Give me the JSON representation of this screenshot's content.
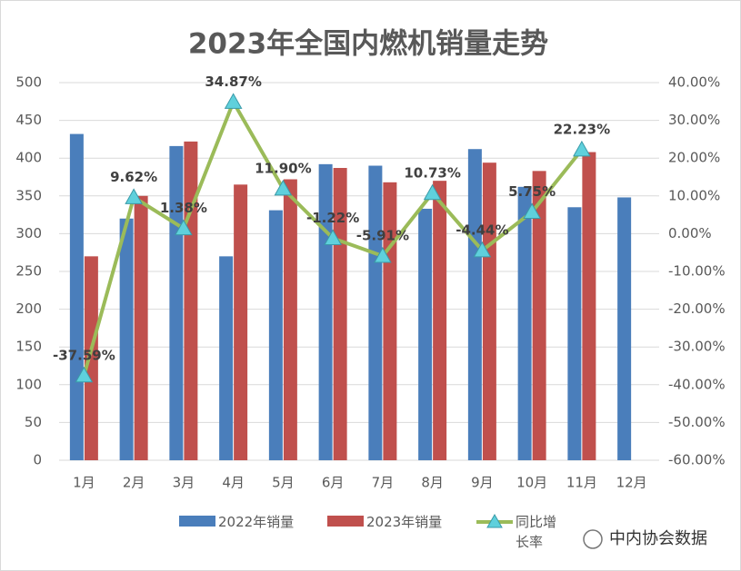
{
  "chart_data": {
    "type": "bar",
    "title": "2023年全国内燃机销量走势",
    "categories": [
      "1月",
      "2月",
      "3月",
      "4月",
      "5月",
      "6月",
      "7月",
      "8月",
      "9月",
      "10月",
      "11月",
      "12月"
    ],
    "series": [
      {
        "name": "2022年销量",
        "type": "bar",
        "color": "#4a7ebb",
        "values": [
          432,
          320,
          416,
          270,
          331,
          392,
          390,
          333,
          412,
          362,
          335,
          348
        ]
      },
      {
        "name": "2023年销量",
        "type": "bar",
        "color": "#c0504d",
        "values": [
          270,
          350,
          422,
          365,
          372,
          387,
          368,
          370,
          394,
          383,
          408,
          null
        ]
      },
      {
        "name": "同比增长率",
        "type": "line",
        "axis": "y2",
        "color": "#9bbb59",
        "marker_color": "#5fd0dc",
        "values": [
          -37.59,
          9.62,
          1.38,
          34.87,
          11.9,
          -1.22,
          -5.91,
          10.73,
          -4.44,
          5.75,
          22.23,
          null
        ],
        "value_labels": [
          "-37.59%",
          "9.62%",
          "1.38%",
          "34.87%",
          "11.90%",
          "-1.22%",
          "-5.91%",
          "10.73%",
          "-4.44%",
          "5.75%",
          "22.23%",
          null
        ]
      }
    ],
    "ylim": [
      0,
      500
    ],
    "yticks": [
      0,
      50,
      100,
      150,
      200,
      250,
      300,
      350,
      400,
      450,
      500
    ],
    "y2lim": [
      -60,
      40
    ],
    "y2ticks": [
      {
        "value": -60,
        "label": "-60.00%"
      },
      {
        "value": -50,
        "label": "-50.00%"
      },
      {
        "value": -40,
        "label": "-40.00%"
      },
      {
        "value": -30,
        "label": "-30.00%"
      },
      {
        "value": -20,
        "label": "-20.00%"
      },
      {
        "value": -10,
        "label": "-10.00%"
      },
      {
        "value": 0,
        "label": "0.00%"
      },
      {
        "value": 10,
        "label": "10.00%"
      },
      {
        "value": 20,
        "label": "20.00%"
      },
      {
        "value": 30,
        "label": "30.00%"
      },
      {
        "value": 40,
        "label": "40.00%"
      }
    ],
    "grid": true,
    "legend": "bottom",
    "watermark": "中内协会数据"
  }
}
